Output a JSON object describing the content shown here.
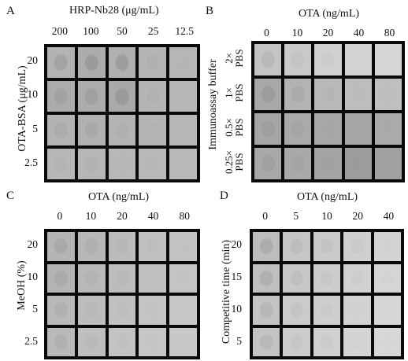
{
  "panel_a": {
    "label": "A",
    "title": "HRP-Nb28 (μg/mL)",
    "y_axis": "OTA-BSA (μg/mL)",
    "columns": [
      "200",
      "100",
      "50",
      "25",
      "12.5"
    ],
    "rows": [
      "20",
      "10",
      "5",
      "2.5"
    ],
    "cells": [
      [
        "#b2b2b2",
        "#acacac",
        "#b0b0b0",
        "#b4b4b4",
        "#b6b6b6"
      ],
      [
        "#acacac",
        "#acacac",
        "#a9a9a9",
        "#b5b5b5",
        "#b7b7b7"
      ],
      [
        "#b3b3b3",
        "#b1b1b1",
        "#b4b4b4",
        "#b5b5b5",
        "#b7b7b7"
      ],
      [
        "#b7b7b7",
        "#b6b6b6",
        "#b8b8b8",
        "#b8b8b8",
        "#b9b9b9"
      ]
    ],
    "spots": [
      [
        "#a3a3a3",
        "#9b9b9b",
        "#9d9d9d",
        "#b0b0b0",
        "#b5b5b5"
      ],
      [
        "#a2a2a2",
        "#a0a0a0",
        "#9a9a9a",
        "#b1b1b1",
        "#b6b6b6"
      ],
      [
        "#acacac",
        "#a9a9a9",
        "#afafaf",
        "#b3b3b3",
        "#b6b6b6"
      ],
      [
        "#b4b4b4",
        "#b2b2b2",
        "#b6b6b6",
        "#b7b7b7",
        "#b8b8b8"
      ]
    ]
  },
  "panel_b": {
    "label": "B",
    "title": "OTA (ng/mL)",
    "y_axis": "Immunoassay buffer",
    "columns": [
      "0",
      "10",
      "20",
      "40",
      "80"
    ],
    "rows": [
      {
        "line1": "2×",
        "line2": "PBS"
      },
      {
        "line1": "1×",
        "line2": "PBS"
      },
      {
        "line1": "0.5×",
        "line2": "PBS"
      },
      {
        "line1": "0.25×",
        "line2": "PBS"
      }
    ],
    "cells": [
      [
        "#c4c4c4",
        "#cacaca",
        "#d0d0d0",
        "#d4d4d4",
        "#d6d6d6"
      ],
      [
        "#a8a8a8",
        "#b3b3b3",
        "#b9b9b9",
        "#bdbdbd",
        "#bfbfbf"
      ],
      [
        "#a6a6a6",
        "#aaaaaa",
        "#a8a8a8",
        "#a7a7a7",
        "#aaaaaa"
      ],
      [
        "#a8a8a8",
        "#a9a9a9",
        "#a4a4a4",
        "#9c9c9c",
        "#a1a1a1"
      ]
    ],
    "spots": [
      [
        "#b9b9b9",
        "#c4c4c4",
        "#cccccc",
        "#d2d2d2",
        "#d5d5d5"
      ],
      [
        "#9c9c9c",
        "#aaaaaa",
        "#b5b5b5",
        "#bbbbbb",
        "#bebebe"
      ],
      [
        "#9f9f9f",
        "#a5a5a5",
        "#a6a6a6",
        "#a6a6a6",
        "#a9a9a9"
      ],
      [
        "#a0a0a0",
        "#a4a4a4",
        "#a2a2a2",
        "#9b9b9b",
        "#a0a0a0"
      ]
    ]
  },
  "panel_c": {
    "label": "C",
    "title": "OTA (ng/mL)",
    "y_axis": "MeOH (%)",
    "columns": [
      "0",
      "10",
      "20",
      "40",
      "80"
    ],
    "rows": [
      "20",
      "10",
      "5",
      "2.5"
    ],
    "cells": [
      [
        "#b5b5b5",
        "#b7b7b7",
        "#bcbcbc",
        "#c0c0c0",
        "#c3c3c3"
      ],
      [
        "#b4b4b4",
        "#b9b9b9",
        "#bdbdbd",
        "#c1c1c1",
        "#c4c4c4"
      ],
      [
        "#b9b9b9",
        "#bdbdbd",
        "#c1c1c1",
        "#c4c4c4",
        "#c7c7c7"
      ],
      [
        "#b9b9b9",
        "#bebebe",
        "#c3c3c3",
        "#c6c6c6",
        "#c8c8c8"
      ]
    ],
    "spots": [
      [
        "#a9a9a9",
        "#afafaf",
        "#b7b7b7",
        "#bdbdbd",
        "#c1c1c1"
      ],
      [
        "#aaaaaa",
        "#b3b3b3",
        "#b9b9b9",
        "#bfbfbf",
        "#c3c3c3"
      ],
      [
        "#b0b0b0",
        "#b8b8b8",
        "#bebebe",
        "#c3c3c3",
        "#c6c6c6"
      ],
      [
        "#b0b0b0",
        "#b9b9b9",
        "#c0c0c0",
        "#c5c5c5",
        "#c7c7c7"
      ]
    ]
  },
  "panel_d": {
    "label": "D",
    "title": "OTA (ng/mL)",
    "y_axis": "Competitive time (min)",
    "columns": [
      "0",
      "5",
      "10",
      "20",
      "40"
    ],
    "rows": [
      "20",
      "15",
      "10",
      "5"
    ],
    "cells": [
      [
        "#bdbdbd",
        "#c6c6c6",
        "#cacaca",
        "#cfcfcf",
        "#d3d3d3"
      ],
      [
        "#bfbfbf",
        "#c8c8c8",
        "#cdcdcd",
        "#d1d1d1",
        "#d5d5d5"
      ],
      [
        "#c3c3c3",
        "#cbcbcb",
        "#cfcfcf",
        "#d2d2d2",
        "#d6d6d6"
      ],
      [
        "#c4c4c4",
        "#cccccc",
        "#d0d0d0",
        "#d4d4d4",
        "#d7d7d7"
      ]
    ],
    "spots": [
      [
        "#adadad",
        "#bcbcbc",
        "#c3c3c3",
        "#cacaca",
        "#d1d1d1"
      ],
      [
        "#b0b0b0",
        "#bfbfbf",
        "#c7c7c7",
        "#cdcdcd",
        "#d3d3d3"
      ],
      [
        "#b7b7b7",
        "#c4c4c4",
        "#cacaca",
        "#d0d0d0",
        "#d5d5d5"
      ],
      [
        "#b9b9b9",
        "#c6c6c6",
        "#cccccc",
        "#d2d2d2",
        "#d6d6d6"
      ]
    ]
  }
}
